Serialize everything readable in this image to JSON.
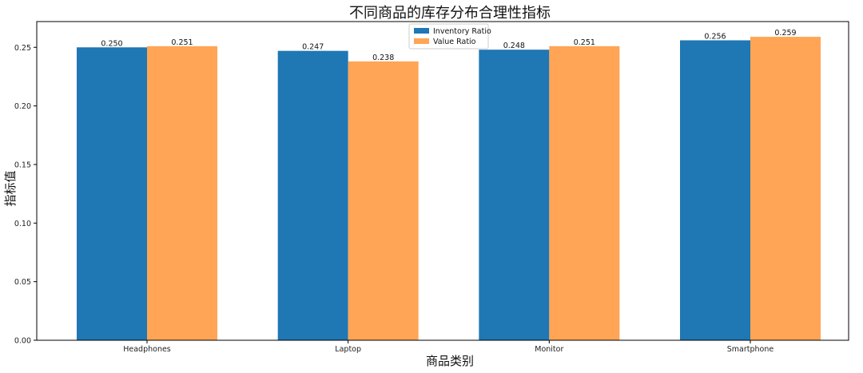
{
  "chart_data": {
    "type": "bar",
    "title": "不同商品的库存分布合理性指标",
    "xlabel": "商品类别",
    "ylabel": "指标值",
    "categories": [
      "Headphones",
      "Laptop",
      "Monitor",
      "Smartphone"
    ],
    "series": [
      {
        "name": "Inventory Ratio",
        "color": "#1f77b4",
        "values": [
          0.25,
          0.247,
          0.248,
          0.256
        ],
        "labels": [
          "0.250",
          "0.247",
          "0.248",
          "0.256"
        ]
      },
      {
        "name": "Value Ratio",
        "color": "#ffa555",
        "values": [
          0.251,
          0.238,
          0.251,
          0.259
        ],
        "labels": [
          "0.251",
          "0.238",
          "0.251",
          "0.259"
        ]
      }
    ],
    "ylim": [
      0,
      0.272
    ],
    "yticks": [
      0.0,
      0.05,
      0.1,
      0.15,
      0.2,
      0.25
    ],
    "ytick_labels": [
      "0.00",
      "0.05",
      "0.10",
      "0.15",
      "0.20",
      "0.25"
    ],
    "grid": false,
    "legend": "top-center"
  }
}
